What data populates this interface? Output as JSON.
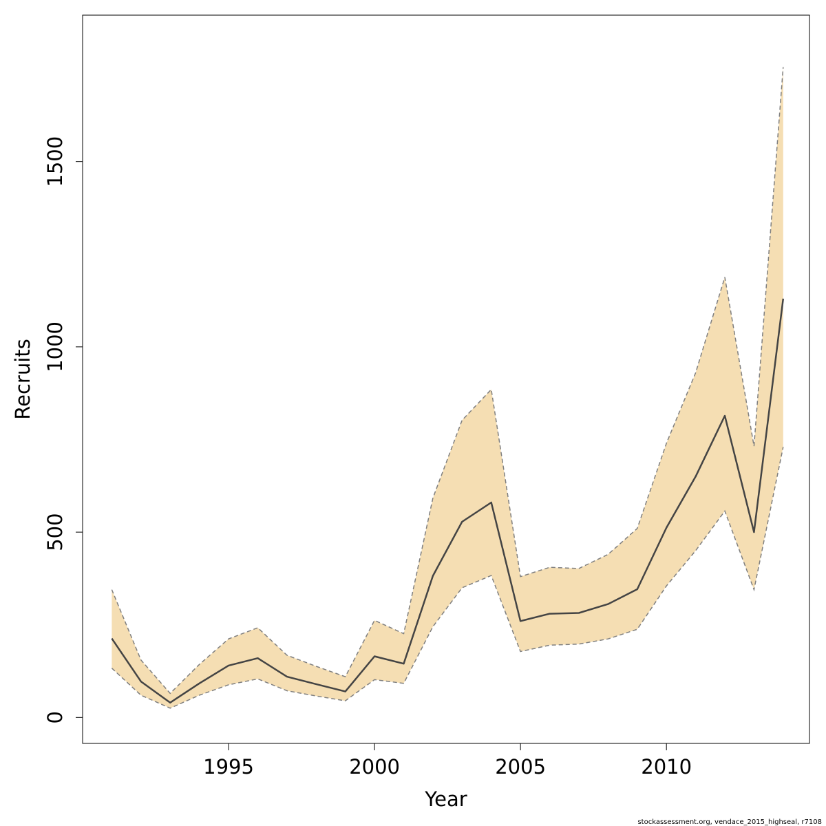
{
  "chart_data": {
    "type": "area",
    "title": "",
    "xlabel": "Year",
    "ylabel": "Recruits",
    "x": [
      1991,
      1992,
      1993,
      1994,
      1995,
      1996,
      1997,
      1998,
      1999,
      2000,
      2001,
      2002,
      2003,
      2004,
      2005,
      2006,
      2007,
      2008,
      2009,
      2010,
      2011,
      2012,
      2013,
      2014
    ],
    "series": [
      {
        "role": "estimate",
        "values": [
          213,
          97,
          40,
          92,
          140,
          160,
          110,
          90,
          70,
          165,
          145,
          382,
          528,
          580,
          260,
          280,
          282,
          306,
          346,
          512,
          650,
          814,
          500,
          1130
        ]
      },
      {
        "role": "upper",
        "values": [
          345,
          155,
          65,
          143,
          212,
          242,
          168,
          138,
          110,
          262,
          226,
          592,
          802,
          885,
          380,
          405,
          402,
          440,
          510,
          740,
          930,
          1188,
          732,
          1755
        ]
      },
      {
        "role": "lower",
        "values": [
          133,
          60,
          25,
          60,
          88,
          104,
          72,
          58,
          45,
          102,
          92,
          245,
          350,
          383,
          178,
          195,
          198,
          212,
          238,
          355,
          450,
          557,
          345,
          730
        ]
      }
    ],
    "xlim": [
      1990.0,
      2014.9
    ],
    "ylim": [
      -70,
      1895
    ],
    "xticks": [
      1995,
      2000,
      2005,
      2010
    ],
    "yticks": [
      0,
      500,
      1000,
      1500
    ],
    "xtick_labels": [
      "1995",
      "2000",
      "2005",
      "2010"
    ],
    "ytick_labels": [
      "0",
      "500",
      "1000",
      "1500"
    ],
    "grid": false,
    "legend": "none",
    "colors": {
      "band_fill": "#f5deb3",
      "band_edge": "#7f7f7f",
      "line": "#444444",
      "axis": "#000000"
    }
  },
  "footnote": "stockassessment.org, vendace_2015_highseal, r7108"
}
